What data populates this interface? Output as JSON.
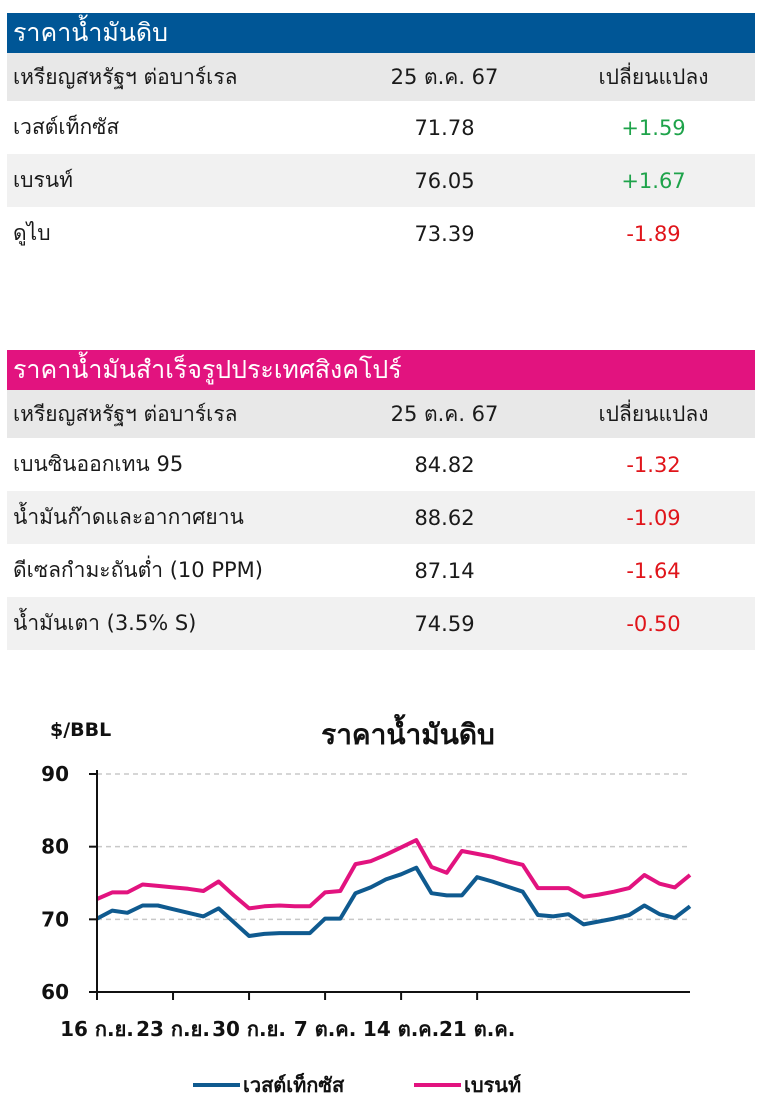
{
  "colors": {
    "crude_header": "#005696",
    "product_header": "#e2137f",
    "series_wti": "#0f5a8f",
    "series_brent": "#e2137f",
    "positive": "#1ea34a",
    "negative": "#e0141a"
  },
  "crude": {
    "title": "ราคาน้ำมันดิบ",
    "col_name": "เหรียญสหรัฐฯ ต่อบาร์เรล",
    "col_date": "25 ต.ค. 67",
    "col_change": "เปลี่ยนแปลง",
    "rows": [
      {
        "name": "เวสต์เท็กซัส",
        "price": "71.78",
        "change": "+1.59"
      },
      {
        "name": "เบรนท์",
        "price": "76.05",
        "change": "+1.67"
      },
      {
        "name": "ดูไบ",
        "price": "73.39",
        "change": "-1.89"
      }
    ]
  },
  "products": {
    "title": "ราคาน้ำมันสำเร็จรูปประเทศสิงคโปร์",
    "col_name": "เหรียญสหรัฐฯ ต่อบาร์เรล",
    "col_date": "25 ต.ค. 67",
    "col_change": "เปลี่ยนแปลง",
    "rows": [
      {
        "name": "เบนซินออกเทน 95",
        "price": "84.82",
        "change": "-1.32"
      },
      {
        "name": "น้ำมันก๊าดและอากาศยาน",
        "price": "88.62",
        "change": "-1.09"
      },
      {
        "name": "ดีเซลกำมะถันต่ำ (10 PPM)",
        "price": "87.14",
        "change": "-1.64"
      },
      {
        "name": "น้ำมันเตา (3.5% S)",
        "price": "74.59",
        "change": "-0.50"
      }
    ]
  },
  "chart_data": {
    "type": "line",
    "title": "ราคาน้ำมันดิบ",
    "ylabel": "$/BBL",
    "ylim": [
      60,
      90
    ],
    "yticks": [
      60,
      70,
      80,
      90
    ],
    "grid": true,
    "legend_position": "bottom",
    "x_tick_labels": [
      "16 ก.ย.",
      "23 ก.ย.",
      "30 ก.ย.",
      "7 ต.ค.",
      "14 ต.ค.",
      "21 ต.ค."
    ],
    "x_tick_index": [
      0,
      5,
      10,
      15,
      20,
      25
    ],
    "series": [
      {
        "name": "เวสต์เท็กซัส",
        "values": [
          70.1,
          71.2,
          70.9,
          71.9,
          71.9,
          71.4,
          70.9,
          70.4,
          71.5,
          69.6,
          67.7,
          68.0,
          68.1,
          68.1,
          68.1,
          70.1,
          70.1,
          73.6,
          74.4,
          75.5,
          76.2,
          77.1,
          73.6,
          73.3,
          73.3,
          75.8,
          75.2,
          74.5,
          73.8,
          70.6,
          70.4,
          70.7,
          69.3,
          69.7,
          70.1,
          70.6,
          71.9,
          70.7,
          70.2,
          71.8
        ]
      },
      {
        "name": "เบรนท์",
        "values": [
          72.8,
          73.7,
          73.7,
          74.8,
          74.6,
          74.4,
          74.2,
          73.9,
          75.2,
          73.3,
          71.5,
          71.8,
          71.9,
          71.8,
          71.8,
          73.7,
          73.9,
          77.6,
          78.0,
          78.9,
          79.9,
          80.9,
          77.2,
          76.4,
          79.4,
          79.0,
          78.6,
          78.0,
          77.5,
          74.3,
          74.3,
          74.3,
          73.1,
          73.4,
          73.8,
          74.3,
          76.1,
          74.9,
          74.4,
          76.1
        ]
      }
    ]
  }
}
